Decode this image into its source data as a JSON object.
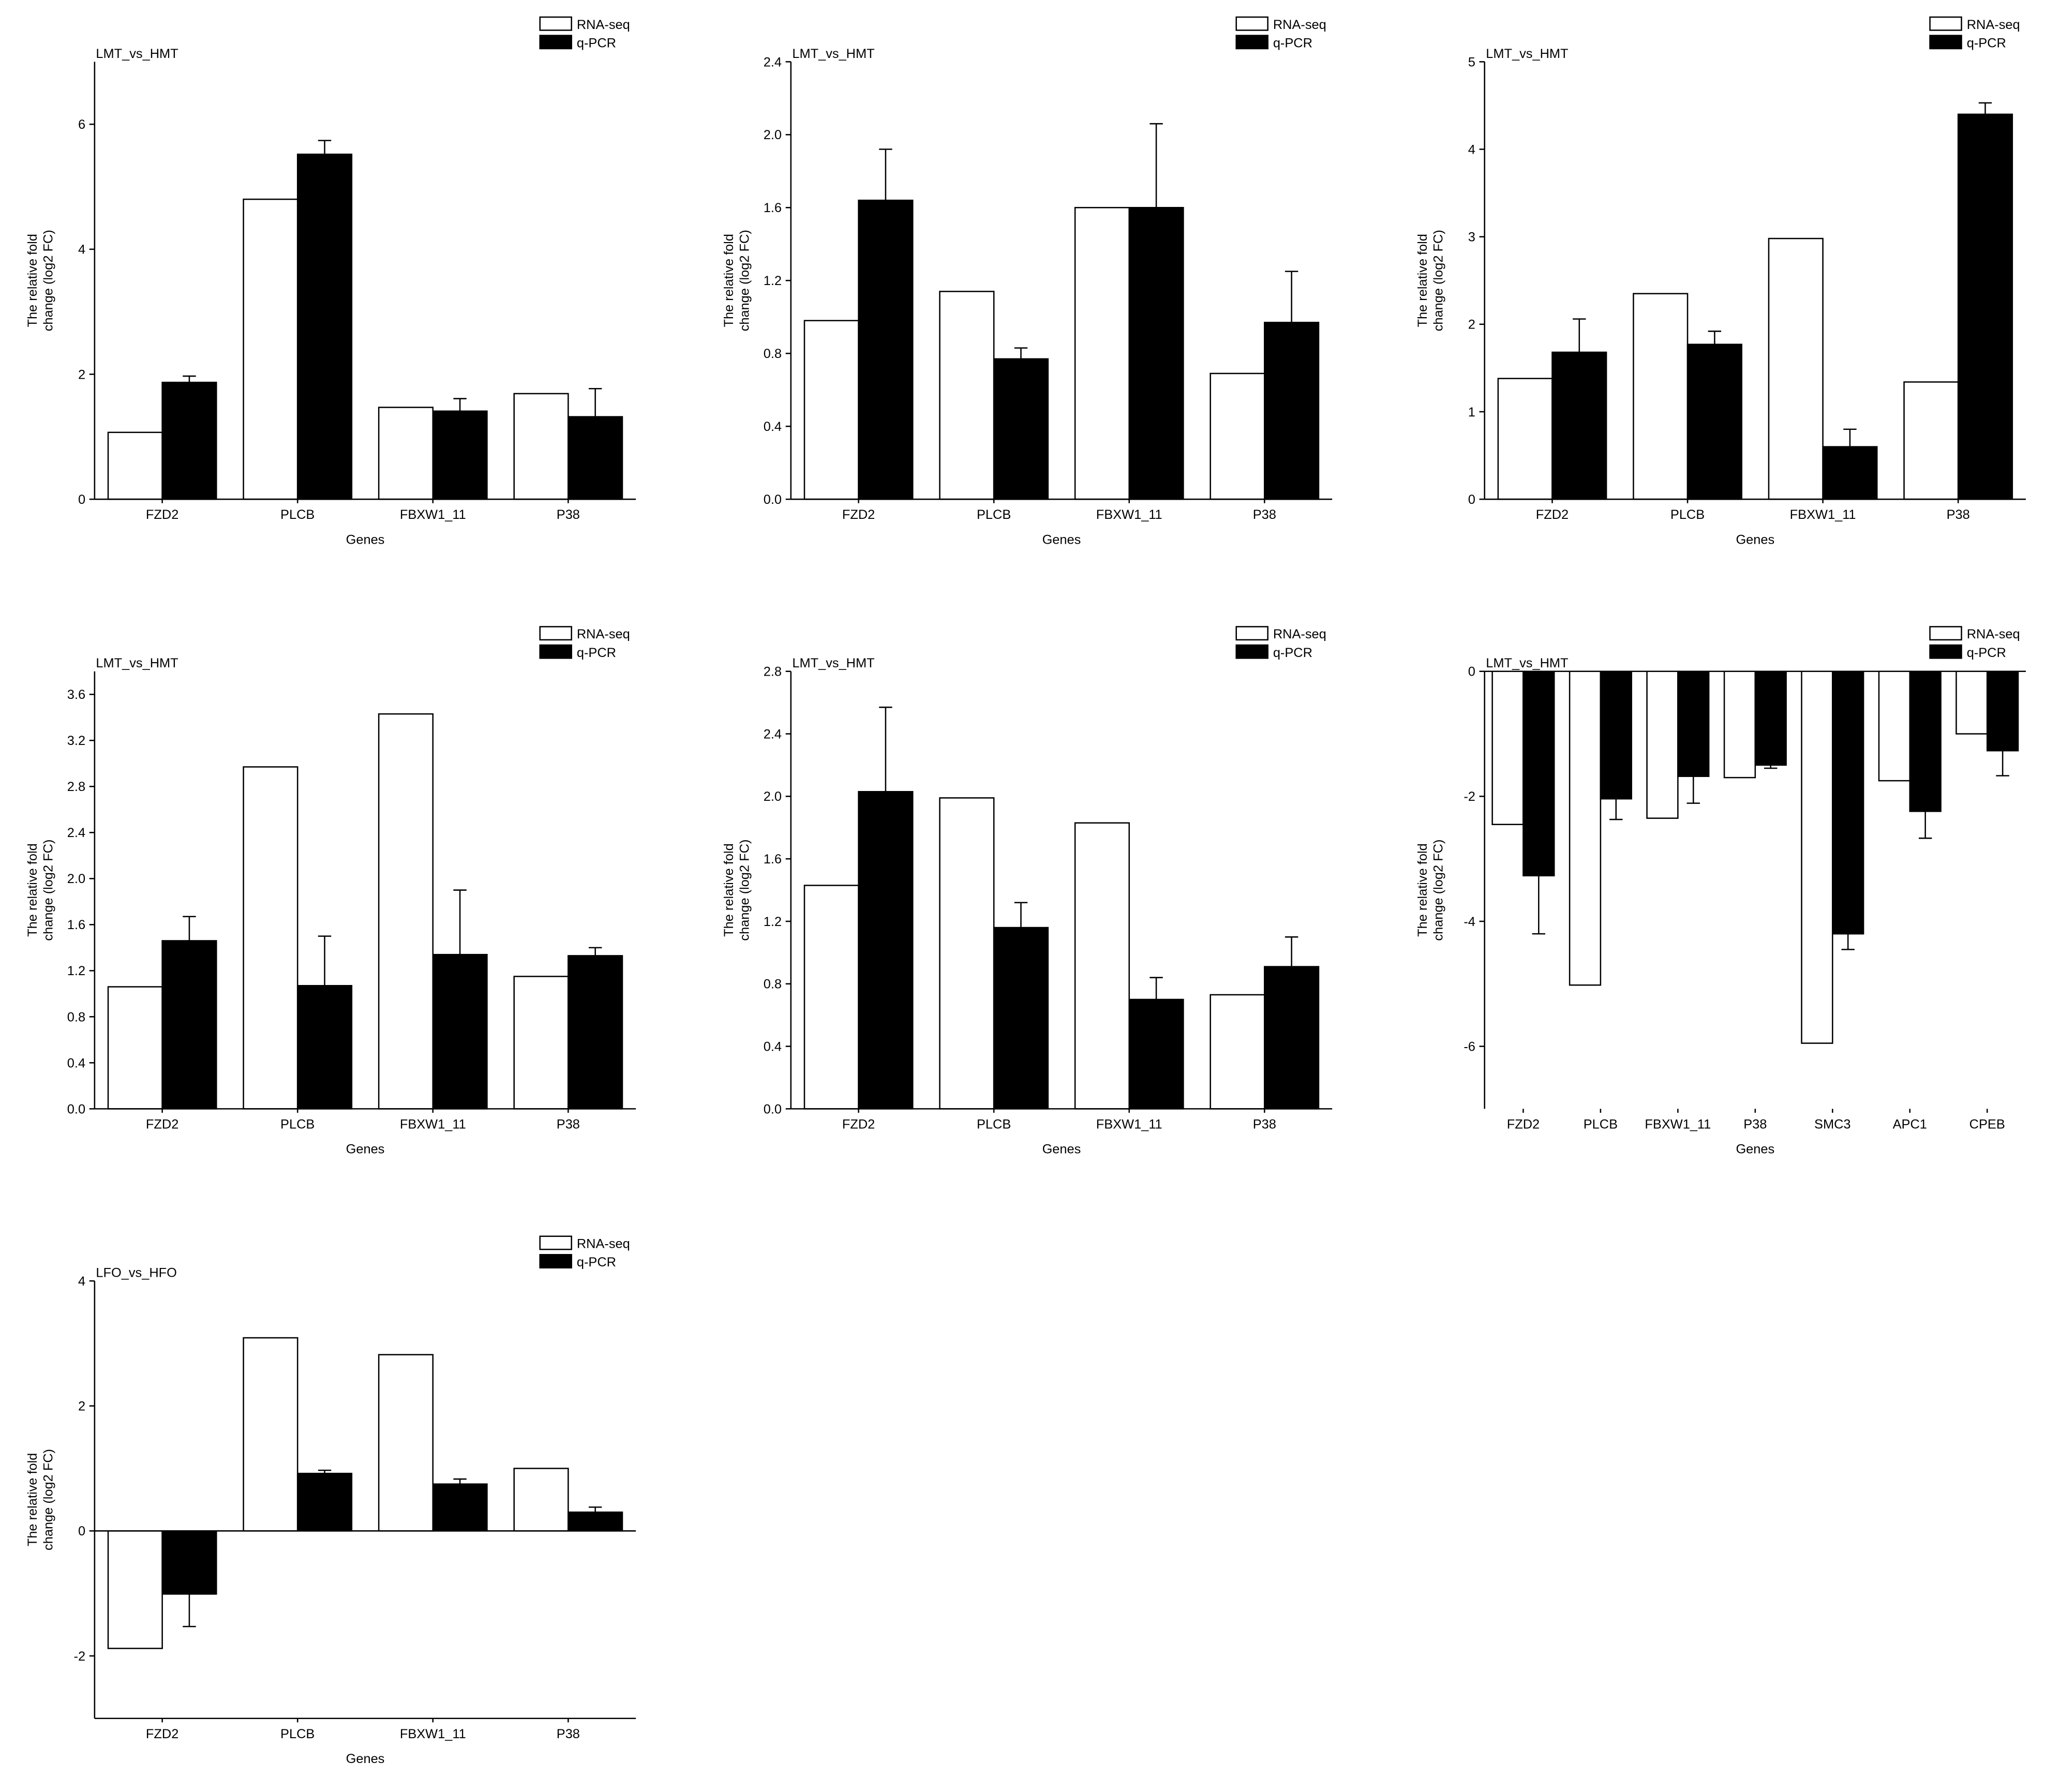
{
  "chart_data": [
    {
      "type": "bar",
      "title": "LMT_vs_HMT",
      "x_label": "Genes",
      "y_label": [
        "The relative fold",
        "change (log2 FC)"
      ],
      "categories": [
        "FZD2",
        "PLCB",
        "FBXW1_11",
        "P38"
      ],
      "series": [
        {
          "name": "RNA-seq",
          "color": "#ffffff",
          "values": [
            1.07,
            4.8,
            1.47,
            1.69
          ]
        },
        {
          "name": "q-PCR",
          "color": "#000000",
          "values": [
            1.87,
            5.52,
            1.41,
            1.32
          ],
          "errors": [
            0.1,
            0.22,
            0.2,
            0.45
          ]
        }
      ],
      "ylim": [
        0,
        7
      ],
      "yticks": [
        0,
        2,
        4,
        6
      ]
    },
    {
      "type": "bar",
      "title": "LMT_vs_HMT",
      "x_label": "Genes",
      "y_label": [
        "The relative fold",
        "change (log2 FC)"
      ],
      "categories": [
        "FZD2",
        "PLCB",
        "FBXW1_11",
        "P38"
      ],
      "series": [
        {
          "name": "RNA-seq",
          "color": "#ffffff",
          "values": [
            0.98,
            1.14,
            1.6,
            0.69
          ]
        },
        {
          "name": "q-PCR",
          "color": "#000000",
          "values": [
            1.64,
            0.77,
            1.6,
            0.97
          ],
          "errors": [
            0.28,
            0.06,
            0.46,
            0.28
          ]
        }
      ],
      "ylim": [
        0,
        2.4
      ],
      "yticks": [
        {
          "value": 0,
          "label": "0.0"
        },
        0.4,
        0.8,
        1.2,
        1.6,
        {
          "value": 2,
          "label": "2.0"
        },
        2.4
      ]
    },
    {
      "type": "bar",
      "title": "LMT_vs_HMT",
      "x_label": "Genes",
      "y_label": [
        "The relative fold",
        "change (log2 FC)"
      ],
      "categories": [
        "FZD2",
        "PLCB",
        "FBXW1_11",
        "P38"
      ],
      "series": [
        {
          "name": "RNA-seq",
          "color": "#ffffff",
          "values": [
            1.38,
            2.35,
            2.98,
            1.34
          ]
        },
        {
          "name": "q-PCR",
          "color": "#000000",
          "values": [
            1.68,
            1.77,
            0.6,
            4.4
          ],
          "errors": [
            0.38,
            0.15,
            0.2,
            0.13
          ]
        }
      ],
      "ylim": [
        0,
        5
      ],
      "yticks": [
        0,
        1,
        2,
        3,
        4,
        5
      ]
    },
    {
      "type": "bar",
      "title": "LMT_vs_HMT",
      "x_label": "Genes",
      "y_label": [
        "The relative fold",
        "change (log2 FC)"
      ],
      "categories": [
        "FZD2",
        "PLCB",
        "FBXW1_11",
        "P38"
      ],
      "series": [
        {
          "name": "RNA-seq",
          "color": "#ffffff",
          "values": [
            1.06,
            2.97,
            3.43,
            1.15
          ]
        },
        {
          "name": "q-PCR",
          "color": "#000000",
          "values": [
            1.46,
            1.07,
            1.34,
            1.33
          ],
          "errors": [
            0.21,
            0.43,
            0.56,
            0.07
          ]
        }
      ],
      "ylim": [
        0,
        3.8
      ],
      "yticks": [
        {
          "value": 0,
          "label": "0.0"
        },
        0.4,
        0.8,
        1.2,
        1.6,
        {
          "value": 2,
          "label": "2.0"
        },
        2.4,
        2.8,
        3.2,
        3.6
      ]
    },
    {
      "type": "bar",
      "title": "LMT_vs_HMT",
      "x_label": "Genes",
      "y_label": [
        "The relative fold",
        "change (log2 FC)"
      ],
      "categories": [
        "FZD2",
        "PLCB",
        "FBXW1_11",
        "P38"
      ],
      "series": [
        {
          "name": "RNA-seq",
          "color": "#ffffff",
          "values": [
            1.43,
            1.99,
            1.83,
            0.73
          ]
        },
        {
          "name": "q-PCR",
          "color": "#000000",
          "values": [
            2.03,
            1.16,
            0.7,
            0.91
          ],
          "errors": [
            0.54,
            0.16,
            0.14,
            0.19
          ]
        }
      ],
      "ylim": [
        0,
        2.8
      ],
      "yticks": [
        {
          "value": 0,
          "label": "0.0"
        },
        0.4,
        0.8,
        1.2,
        1.6,
        {
          "value": 2,
          "label": "2.0"
        },
        2.4,
        2.8
      ]
    },
    {
      "type": "bar",
      "title": "LMT_vs_HMT",
      "x_label": "Genes",
      "y_label": [
        "The relative fold",
        "change (log2 FC)"
      ],
      "categories": [
        "FZD2",
        "PLCB",
        "FBXW1_11",
        "P38",
        "SMC3",
        "APC1",
        "CPEB"
      ],
      "series": [
        {
          "name": "RNA-seq",
          "color": "#ffffff",
          "values": [
            -2.45,
            -5.02,
            -2.35,
            -1.7,
            -5.95,
            -1.75,
            -1.0
          ]
        },
        {
          "name": "q-PCR",
          "color": "#000000",
          "values": [
            -3.27,
            -2.04,
            -1.68,
            -1.5,
            -4.2,
            -2.24,
            -1.27
          ],
          "errors": [
            0.93,
            0.33,
            0.43,
            0.05,
            0.25,
            0.43,
            0.4
          ]
        }
      ],
      "ylim": [
        -7,
        0
      ],
      "yticks": [
        -6,
        -4,
        -2,
        0
      ]
    },
    {
      "type": "bar",
      "title": "LFO_vs_HFO",
      "x_label": "Genes",
      "y_label": [
        "The relative fold",
        "change (log2 FC)"
      ],
      "categories": [
        "FZD2",
        "PLCB",
        "FBXW1_11",
        "P38"
      ],
      "series": [
        {
          "name": "RNA-seq",
          "color": "#ffffff",
          "values": [
            -1.88,
            3.09,
            2.82,
            1.0
          ]
        },
        {
          "name": "q-PCR",
          "color": "#000000",
          "values": [
            -1.01,
            0.92,
            0.75,
            0.3
          ],
          "errors": [
            0.52,
            0.05,
            0.08,
            0.08
          ]
        }
      ],
      "ylim": [
        -3,
        4
      ],
      "yticks": [
        -2,
        0,
        2,
        4
      ]
    }
  ]
}
